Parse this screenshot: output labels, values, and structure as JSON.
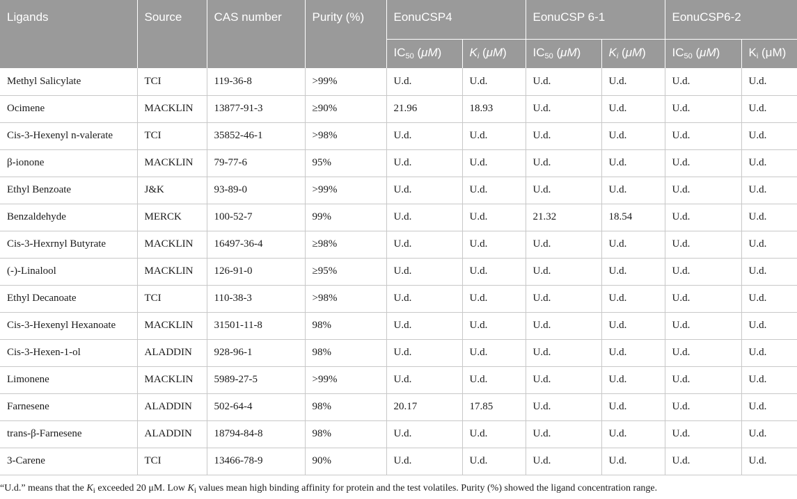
{
  "header": {
    "ligands": "Ligands",
    "source": "Source",
    "cas": "CAS number",
    "purity": "Purity (%)",
    "groups": [
      "EonuCSP4",
      "EonuCSP 6-1",
      "EonuCSP6-2"
    ],
    "ic_prefix": "IC",
    "ic_sub": "50",
    "ic_unit_open": " (",
    "mu": "μM",
    "unit_close": ")",
    "k_letter": "K",
    "k_sub": "i",
    "k_unit_open": " (",
    "k_plain": "K",
    "k_plain_sub": "i",
    "k_plain_unit": " (μM)"
  },
  "rows": [
    {
      "name": "Methyl Salicylate",
      "source": "TCI",
      "cas": "119-36-8",
      "purity": ">99%",
      "v": [
        "U.d.",
        "U.d.",
        "U.d.",
        "U.d.",
        "U.d.",
        "U.d."
      ]
    },
    {
      "name": "Ocimene",
      "source": "MACKLIN",
      "cas": "13877-91-3",
      "purity": "≥90%",
      "v": [
        "21.96",
        "18.93",
        "U.d.",
        "U.d.",
        "U.d.",
        "U.d."
      ]
    },
    {
      "name": "Cis-3-Hexenyl n-valerate",
      "source": "TCI",
      "cas": "35852-46-1",
      "purity": ">98%",
      "v": [
        "U.d.",
        "U.d.",
        "U.d.",
        "U.d.",
        "U.d.",
        "U.d."
      ]
    },
    {
      "name": "β-ionone",
      "source": "MACKLIN",
      "cas": "79-77-6",
      "purity": "95%",
      "v": [
        "U.d.",
        "U.d.",
        "U.d.",
        "U.d.",
        "U.d.",
        "U.d."
      ]
    },
    {
      "name": "Ethyl Benzoate",
      "source": "J&K",
      "cas": "93-89-0",
      "purity": ">99%",
      "v": [
        "U.d.",
        "U.d.",
        "U.d.",
        "U.d.",
        "U.d.",
        "U.d."
      ]
    },
    {
      "name": "Benzaldehyde",
      "source": "MERCK",
      "cas": "100-52-7",
      "purity": "99%",
      "v": [
        "U.d.",
        "U.d.",
        "21.32",
        "18.54",
        "U.d.",
        "U.d."
      ]
    },
    {
      "name": "Cis-3-Hexrnyl Butyrate",
      "source": "MACKLIN",
      "cas": "16497-36-4",
      "purity": "≥98%",
      "v": [
        "U.d.",
        "U.d.",
        "U.d.",
        "U.d.",
        "U.d.",
        "U.d."
      ]
    },
    {
      "name": "(-)-Linalool",
      "source": "MACKLIN",
      "cas": "126-91-0",
      "purity": "≥95%",
      "v": [
        "U.d.",
        "U.d.",
        "U.d.",
        "U.d.",
        "U.d.",
        "U.d."
      ]
    },
    {
      "name": "Ethyl Decanoate",
      "source": "TCI",
      "cas": "110-38-3",
      "purity": ">98%",
      "v": [
        "U.d.",
        "U.d.",
        "U.d.",
        "U.d.",
        "U.d.",
        "U.d."
      ]
    },
    {
      "name": "Cis-3-Hexenyl Hexanoate",
      "source": "MACKLIN",
      "cas": "31501-11-8",
      "purity": "98%",
      "v": [
        "U.d.",
        "U.d.",
        "U.d.",
        "U.d.",
        "U.d.",
        "U.d."
      ]
    },
    {
      "name": "Cis-3-Hexen-1-ol",
      "source": "ALADDIN",
      "cas": "928-96-1",
      "purity": "98%",
      "v": [
        "U.d.",
        "U.d.",
        "U.d.",
        "U.d.",
        "U.d.",
        "U.d."
      ]
    },
    {
      "name": "Limonene",
      "source": "MACKLIN",
      "cas": "5989-27-5",
      "purity": ">99%",
      "v": [
        "U.d.",
        "U.d.",
        "U.d.",
        "U.d.",
        "U.d.",
        "U.d."
      ]
    },
    {
      "name": "Farnesene",
      "source": "ALADDIN",
      "cas": "502-64-4",
      "purity": "98%",
      "v": [
        "20.17",
        "17.85",
        "U.d.",
        "U.d.",
        "U.d.",
        "U.d."
      ]
    },
    {
      "name": "trans-β-Farnesene",
      "source": "ALADDIN",
      "cas": "18794-84-8",
      "purity": "98%",
      "v": [
        "U.d.",
        "U.d.",
        "U.d.",
        "U.d.",
        "U.d.",
        "U.d."
      ]
    },
    {
      "name": "3-Carene",
      "source": "TCI",
      "cas": "13466-78-9",
      "purity": "90%",
      "v": [
        "U.d.",
        "U.d.",
        "U.d.",
        "U.d.",
        "U.d.",
        "U.d."
      ]
    }
  ],
  "footnote": {
    "part1": "“U.d.” means that the ",
    "k1": "K",
    "k1_sub": "i",
    "part2": " exceeded 20 μM. Low ",
    "k2": "K",
    "k2_sub": "i",
    "part3": " values mean high binding affinity for protein and the test volatiles. Purity (%) showed the ligand concentration range."
  }
}
